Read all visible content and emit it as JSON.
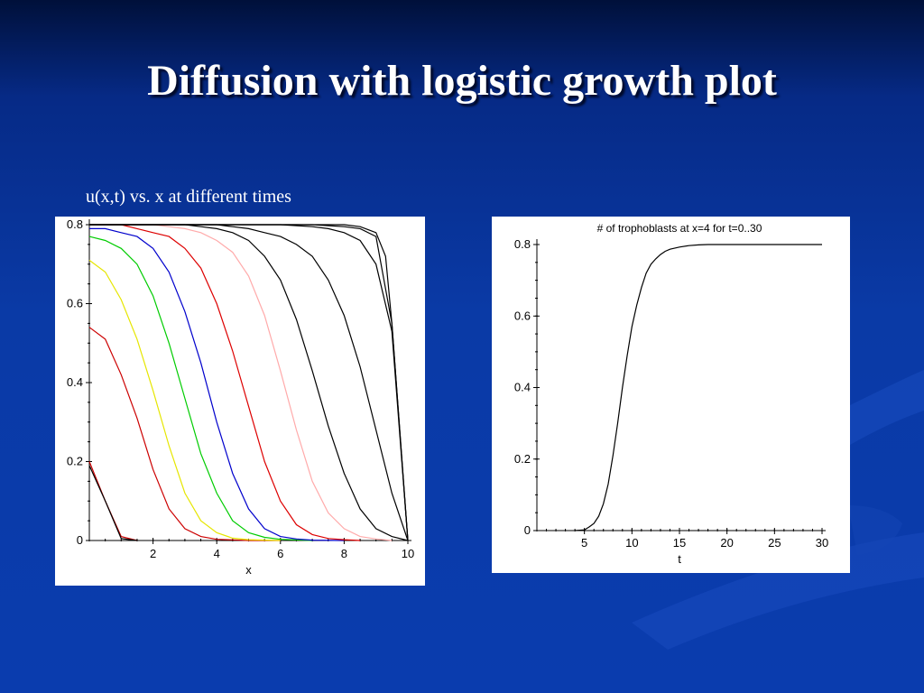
{
  "slide": {
    "title": "Diffusion with logistic growth plot",
    "caption": "u(x,t) vs. x at different times"
  },
  "chart_data": [
    {
      "type": "line",
      "title": "",
      "xlabel": "x",
      "ylabel": "",
      "xlim": [
        0,
        10
      ],
      "ylim": [
        0,
        0.8
      ],
      "x_ticks": [
        "2",
        "4",
        "6",
        "8",
        "10"
      ],
      "y_ticks": [
        "0",
        "0.2",
        "0.4",
        "0.6",
        "0.8"
      ],
      "grid": false,
      "series": [
        {
          "color": "#cc0000",
          "x": [
            0,
            0.5,
            1.0,
            1.5
          ],
          "y": [
            0.2,
            0.1,
            0.01,
            0
          ]
        },
        {
          "color": "#000000",
          "x": [
            0,
            0.5,
            1.0,
            1.5
          ],
          "y": [
            0.19,
            0.1,
            0.005,
            0
          ]
        },
        {
          "color": "#cc0000",
          "x": [
            0,
            0.5,
            1,
            1.5,
            2,
            2.5,
            3,
            3.5,
            4,
            5,
            6
          ],
          "y": [
            0.54,
            0.51,
            0.42,
            0.31,
            0.18,
            0.08,
            0.03,
            0.01,
            0.003,
            0,
            0
          ]
        },
        {
          "color": "#e6e600",
          "x": [
            0,
            0.5,
            1,
            1.5,
            2,
            2.5,
            3,
            3.5,
            4,
            4.5,
            5,
            6
          ],
          "y": [
            0.71,
            0.68,
            0.61,
            0.51,
            0.38,
            0.24,
            0.12,
            0.05,
            0.02,
            0.006,
            0.002,
            0
          ]
        },
        {
          "color": "#00cc00",
          "x": [
            0,
            0.5,
            1,
            1.5,
            2,
            2.5,
            3,
            3.5,
            4,
            4.5,
            5,
            5.5,
            6,
            7
          ],
          "y": [
            0.77,
            0.76,
            0.74,
            0.7,
            0.62,
            0.5,
            0.36,
            0.22,
            0.12,
            0.05,
            0.02,
            0.008,
            0.003,
            0
          ]
        },
        {
          "color": "#0000cc",
          "x": [
            0,
            0.5,
            1,
            1.5,
            2,
            2.5,
            3,
            3.5,
            4,
            4.5,
            5,
            5.5,
            6,
            6.5,
            7,
            8
          ],
          "y": [
            0.79,
            0.79,
            0.78,
            0.77,
            0.74,
            0.68,
            0.58,
            0.45,
            0.3,
            0.17,
            0.08,
            0.03,
            0.01,
            0.004,
            0.001,
            0
          ]
        },
        {
          "color": "#dd0000",
          "x": [
            0,
            1,
            1.5,
            2,
            2.5,
            3,
            3.5,
            4,
            4.5,
            5,
            5.5,
            6,
            6.5,
            7,
            7.5,
            8,
            8.5
          ],
          "y": [
            0.8,
            0.8,
            0.79,
            0.78,
            0.77,
            0.74,
            0.69,
            0.6,
            0.48,
            0.34,
            0.2,
            0.1,
            0.04,
            0.015,
            0.005,
            0.002,
            0
          ]
        },
        {
          "color": "#ffaaaa",
          "x": [
            0,
            2,
            2.5,
            3,
            3.5,
            4,
            4.5,
            5,
            5.5,
            6,
            6.5,
            7,
            7.5,
            8,
            8.5,
            9,
            9.5
          ],
          "y": [
            0.8,
            0.8,
            0.795,
            0.79,
            0.78,
            0.76,
            0.73,
            0.67,
            0.57,
            0.43,
            0.28,
            0.15,
            0.07,
            0.03,
            0.01,
            0.004,
            0
          ]
        },
        {
          "color": "#000000",
          "x": [
            0,
            3,
            3.5,
            4,
            4.5,
            5,
            5.5,
            6,
            6.5,
            7,
            7.5,
            8,
            8.5,
            9,
            9.5,
            10
          ],
          "y": [
            0.8,
            0.8,
            0.795,
            0.79,
            0.78,
            0.76,
            0.72,
            0.66,
            0.56,
            0.43,
            0.29,
            0.17,
            0.08,
            0.03,
            0.01,
            0
          ]
        },
        {
          "color": "#000000",
          "x": [
            0,
            4,
            4.5,
            5,
            5.5,
            6,
            6.5,
            7,
            7.5,
            8,
            8.5,
            9,
            9.5,
            10
          ],
          "y": [
            0.8,
            0.8,
            0.795,
            0.79,
            0.78,
            0.77,
            0.75,
            0.72,
            0.66,
            0.57,
            0.44,
            0.28,
            0.12,
            0
          ]
        },
        {
          "color": "#000000",
          "x": [
            0,
            6,
            7,
            7.5,
            8,
            8.5,
            9,
            9.5,
            10
          ],
          "y": [
            0.8,
            0.8,
            0.795,
            0.79,
            0.78,
            0.76,
            0.7,
            0.53,
            0
          ]
        },
        {
          "color": "#000000",
          "x": [
            0,
            7,
            8,
            8.5,
            9,
            9.5,
            10
          ],
          "y": [
            0.8,
            0.8,
            0.795,
            0.79,
            0.77,
            0.55,
            0
          ]
        },
        {
          "color": "#000000",
          "x": [
            0,
            8,
            8.5,
            9,
            9.3,
            9.5,
            10
          ],
          "y": [
            0.8,
            0.8,
            0.795,
            0.78,
            0.72,
            0.55,
            0
          ]
        }
      ]
    },
    {
      "type": "line",
      "title": "# of trophoblasts at x=4 for t=0..30",
      "xlabel": "t",
      "ylabel": "",
      "xlim": [
        0,
        30
      ],
      "ylim": [
        0,
        0.8
      ],
      "x_ticks": [
        "5",
        "10",
        "15",
        "20",
        "25",
        "30"
      ],
      "y_ticks": [
        "0",
        "0.2",
        "0.4",
        "0.6",
        "0.8"
      ],
      "grid": false,
      "series": [
        {
          "color": "#000000",
          "x": [
            4,
            5,
            5.5,
            6,
            6.5,
            7,
            7.5,
            8,
            8.5,
            9,
            9.5,
            10,
            10.5,
            11,
            11.5,
            12,
            12.5,
            13,
            13.5,
            14,
            15,
            16,
            17,
            18,
            20,
            25,
            30
          ],
          "y": [
            0,
            0.002,
            0.01,
            0.02,
            0.04,
            0.075,
            0.13,
            0.21,
            0.3,
            0.4,
            0.49,
            0.57,
            0.63,
            0.68,
            0.72,
            0.745,
            0.76,
            0.772,
            0.781,
            0.787,
            0.793,
            0.797,
            0.799,
            0.8,
            0.8,
            0.8,
            0.8
          ]
        }
      ]
    }
  ]
}
